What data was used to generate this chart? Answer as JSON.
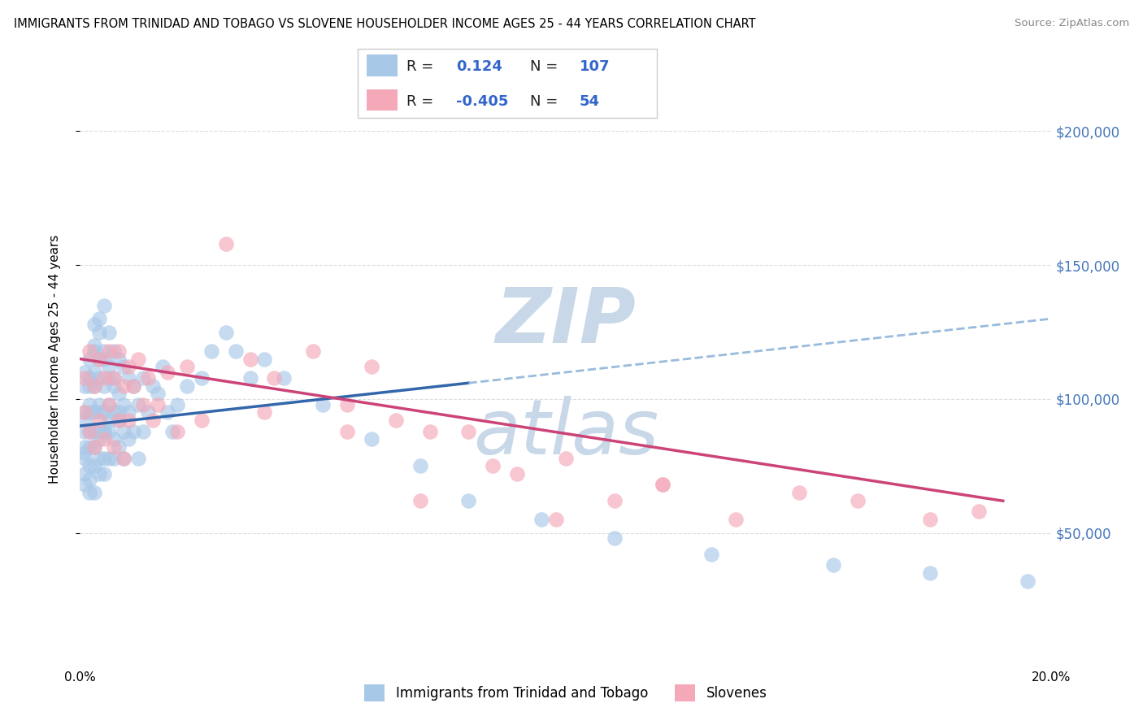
{
  "title": "IMMIGRANTS FROM TRINIDAD AND TOBAGO VS SLOVENE HOUSEHOLDER INCOME AGES 25 - 44 YEARS CORRELATION CHART",
  "source": "Source: ZipAtlas.com",
  "ylabel": "Householder Income Ages 25 - 44 years",
  "xlim": [
    0.0,
    0.2
  ],
  "ylim": [
    0,
    230000
  ],
  "yticks": [
    50000,
    100000,
    150000,
    200000
  ],
  "ytick_labels": [
    "$50,000",
    "$100,000",
    "$150,000",
    "$200,000"
  ],
  "xticks": [
    0.0,
    0.05,
    0.1,
    0.15,
    0.2
  ],
  "xtick_labels": [
    "0.0%",
    "",
    "",
    "",
    "20.0%"
  ],
  "blue_color": "#A8C8E8",
  "pink_color": "#F4A8B8",
  "blue_line_color": "#3366AA",
  "pink_line_color": "#CC4477",
  "blue_dashed_color": "#99BBDD",
  "R_blue": 0.124,
  "N_blue": 107,
  "R_pink": -0.405,
  "N_pink": 54,
  "watermark_color": "#C8D8E8",
  "blue_scatter_x": [
    0.001,
    0.001,
    0.001,
    0.001,
    0.001,
    0.001,
    0.001,
    0.001,
    0.001,
    0.001,
    0.002,
    0.002,
    0.002,
    0.002,
    0.002,
    0.002,
    0.002,
    0.002,
    0.002,
    0.002,
    0.003,
    0.003,
    0.003,
    0.003,
    0.003,
    0.003,
    0.003,
    0.003,
    0.003,
    0.003,
    0.004,
    0.004,
    0.004,
    0.004,
    0.004,
    0.004,
    0.004,
    0.004,
    0.004,
    0.004,
    0.005,
    0.005,
    0.005,
    0.005,
    0.005,
    0.005,
    0.005,
    0.005,
    0.005,
    0.006,
    0.006,
    0.006,
    0.006,
    0.006,
    0.006,
    0.006,
    0.007,
    0.007,
    0.007,
    0.007,
    0.007,
    0.007,
    0.008,
    0.008,
    0.008,
    0.008,
    0.008,
    0.009,
    0.009,
    0.009,
    0.009,
    0.01,
    0.01,
    0.01,
    0.011,
    0.011,
    0.012,
    0.012,
    0.013,
    0.013,
    0.014,
    0.015,
    0.016,
    0.017,
    0.018,
    0.019,
    0.02,
    0.022,
    0.025,
    0.027,
    0.03,
    0.032,
    0.035,
    0.038,
    0.042,
    0.05,
    0.06,
    0.07,
    0.08,
    0.095,
    0.11,
    0.13,
    0.155,
    0.175,
    0.195
  ],
  "blue_scatter_y": [
    95000,
    88000,
    80000,
    72000,
    110000,
    68000,
    82000,
    92000,
    105000,
    78000,
    108000,
    95000,
    88000,
    75000,
    115000,
    70000,
    82000,
    98000,
    105000,
    65000,
    128000,
    118000,
    105000,
    95000,
    88000,
    75000,
    110000,
    82000,
    65000,
    120000,
    125000,
    108000,
    95000,
    88000,
    78000,
    115000,
    72000,
    85000,
    98000,
    130000,
    135000,
    118000,
    105000,
    95000,
    88000,
    78000,
    115000,
    72000,
    88000,
    125000,
    112000,
    98000,
    88000,
    78000,
    108000,
    92000,
    118000,
    108000,
    95000,
    85000,
    78000,
    105000,
    115000,
    102000,
    92000,
    82000,
    95000,
    112000,
    98000,
    88000,
    78000,
    108000,
    95000,
    85000,
    105000,
    88000,
    98000,
    78000,
    108000,
    88000,
    95000,
    105000,
    102000,
    112000,
    95000,
    88000,
    98000,
    105000,
    108000,
    118000,
    125000,
    118000,
    108000,
    115000,
    108000,
    98000,
    85000,
    75000,
    62000,
    55000,
    48000,
    42000,
    38000,
    35000,
    32000
  ],
  "pink_scatter_x": [
    0.001,
    0.001,
    0.002,
    0.002,
    0.003,
    0.003,
    0.004,
    0.004,
    0.005,
    0.005,
    0.006,
    0.006,
    0.007,
    0.007,
    0.008,
    0.008,
    0.009,
    0.009,
    0.01,
    0.01,
    0.011,
    0.012,
    0.013,
    0.014,
    0.015,
    0.016,
    0.018,
    0.02,
    0.022,
    0.025,
    0.03,
    0.035,
    0.04,
    0.048,
    0.055,
    0.06,
    0.065,
    0.072,
    0.08,
    0.09,
    0.1,
    0.11,
    0.12,
    0.135,
    0.148,
    0.16,
    0.175,
    0.185,
    0.038,
    0.055,
    0.07,
    0.085,
    0.098,
    0.12
  ],
  "pink_scatter_y": [
    108000,
    95000,
    118000,
    88000,
    105000,
    82000,
    115000,
    92000,
    108000,
    85000,
    118000,
    98000,
    108000,
    82000,
    118000,
    92000,
    105000,
    78000,
    112000,
    92000,
    105000,
    115000,
    98000,
    108000,
    92000,
    98000,
    110000,
    88000,
    112000,
    92000,
    158000,
    115000,
    108000,
    118000,
    98000,
    112000,
    92000,
    88000,
    88000,
    72000,
    78000,
    62000,
    68000,
    55000,
    65000,
    62000,
    55000,
    58000,
    95000,
    88000,
    62000,
    75000,
    55000,
    68000
  ]
}
